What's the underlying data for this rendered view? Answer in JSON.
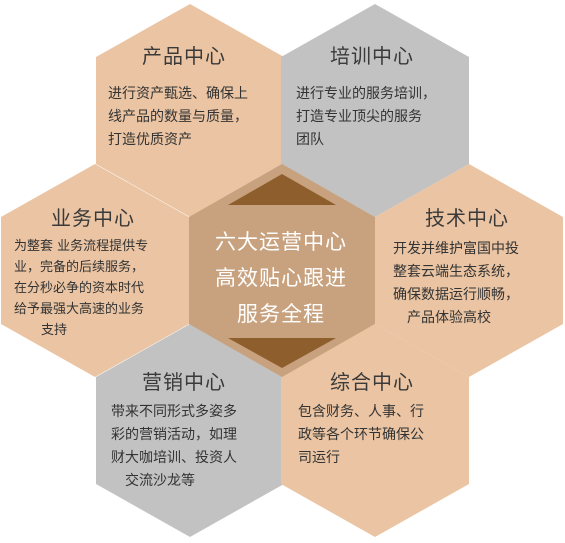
{
  "colors": {
    "peach": "#eac4a3",
    "gray": "#c2c2c2",
    "center": "#c8a27e",
    "arrow": "#8f5e2d",
    "title_text": "#3a3a3a",
    "body_text": "#333333",
    "center_text": "#ffffff"
  },
  "center": {
    "line1": "六大运营中心",
    "line2": "高效贴心跟进",
    "line3": "服务全程"
  },
  "hexes": {
    "product": {
      "title": "产品中心",
      "desc": [
        "进行资产甄选、确保上",
        "线产品的数量与质量，",
        "打造优质资产"
      ]
    },
    "training": {
      "title": "培训中心",
      "desc": [
        "进行专业的服务培训，",
        "打造专业顶尖的服务",
        "团队"
      ]
    },
    "business": {
      "title": "业务中心",
      "desc": [
        "为整套 业务流程提供专",
        "业，完备的后续服务，",
        "在分秒必争的资本时代",
        "给予最强大高速的业务",
        "支持"
      ]
    },
    "tech": {
      "title": "技术中心",
      "desc": [
        "开发并维护富国中投",
        "整套云端生态系统，",
        "确保数据运行顺畅，",
        "产品体验高校"
      ]
    },
    "marketing": {
      "title": "营销中心",
      "desc": [
        "带来不同形式多姿多",
        "彩的营销活动，如理",
        "财大咖培训、投资人",
        "交流沙龙等"
      ]
    },
    "general": {
      "title": "综合中心",
      "desc": [
        "包含财务、人事、行",
        "政等各个环节确保公",
        "司运行"
      ]
    }
  }
}
